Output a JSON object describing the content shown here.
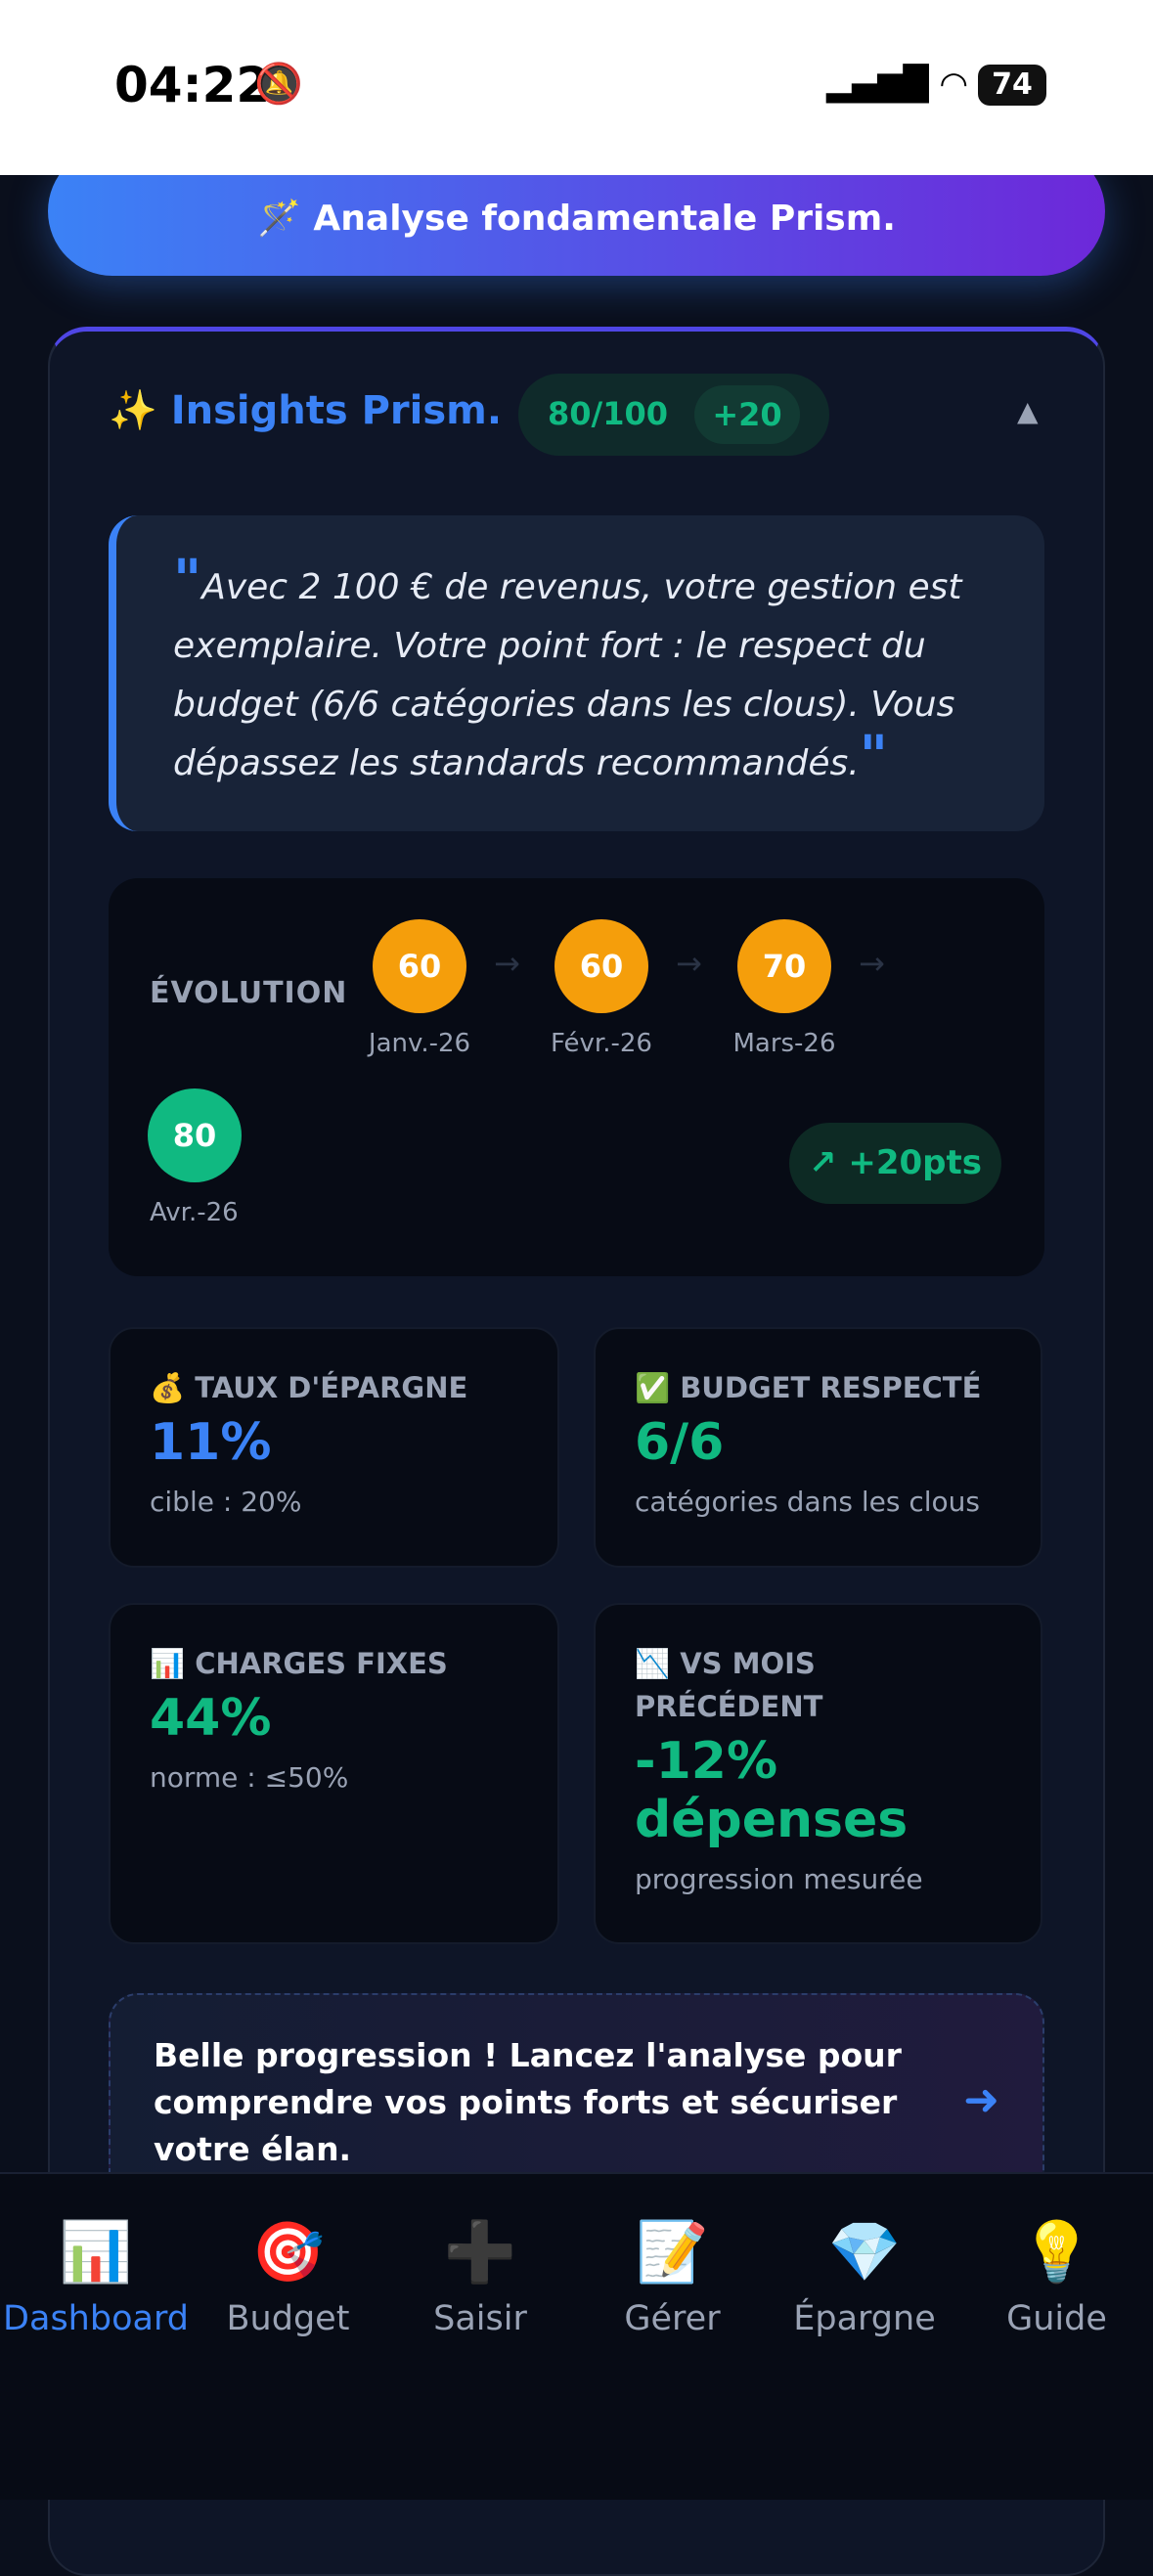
{
  "status_bar": {
    "time": "04:22",
    "battery": "74"
  },
  "top_button": {
    "label": "🪄 Analyse fondamentale Prism."
  },
  "insights": {
    "title": "✨ Insights Prism.",
    "score": "80/100",
    "delta": "+20",
    "quote": "Avec 2 100 € de revenus, votre gestion est exemplaire. Votre point fort : le respect du budget (6/6 catégories dans les clous). Vous dépassez les standards recommandés.",
    "evolution": {
      "label": "ÉVOLUTION",
      "points": [
        {
          "score": "60",
          "label": "Janv.-26"
        },
        {
          "score": "60",
          "label": "Févr.-26"
        },
        {
          "score": "70",
          "label": "Mars-26"
        },
        {
          "score": "80",
          "label": "Avr.-26"
        }
      ],
      "trend": "↗ +20pts"
    },
    "stats": [
      {
        "label": "💰 TAUX D'ÉPARGNE",
        "value": "11%",
        "note": "cible : 20%"
      },
      {
        "label": "✅ BUDGET RESPECTÉ",
        "value": "6/6",
        "note": "catégories dans les clous"
      },
      {
        "label": "📊 CHARGES FIXES",
        "value": "44%",
        "note": "norme : ≤50%"
      },
      {
        "label": "📉 VS MOIS PRÉCÉDENT",
        "value": "-12% dépenses",
        "note": "progression mesurée"
      }
    ],
    "cta": "Belle progression ! Lancez l'analyse pour comprendre vos points forts et sécuriser votre élan."
  },
  "nav": [
    {
      "icon": "📊",
      "label": "Dashboard"
    },
    {
      "icon": "🎯",
      "label": "Budget"
    },
    {
      "icon": "➕",
      "label": "Saisir"
    },
    {
      "icon": "📝",
      "label": "Gérer"
    },
    {
      "icon": "💎",
      "label": "Épargne"
    },
    {
      "icon": "💡",
      "label": "Guide"
    }
  ]
}
